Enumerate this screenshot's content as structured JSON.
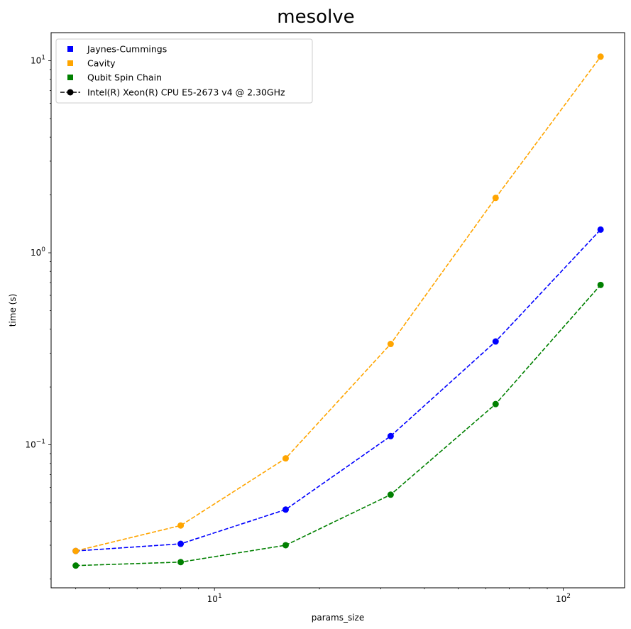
{
  "chart_data": {
    "type": "line",
    "title": "mesolve",
    "xlabel": "params_size",
    "ylabel": "time (s)",
    "xscale": "log",
    "yscale": "log",
    "xlim": [
      3.4,
      150
    ],
    "ylim": [
      0.018,
      14
    ],
    "grid": false,
    "legend_position": "top-left",
    "x": [
      4,
      8,
      16,
      32,
      64,
      128
    ],
    "series": [
      {
        "name": "Jaynes-Cummings",
        "color": "#0000ff",
        "values": [
          0.028,
          0.0305,
          0.046,
          0.111,
          0.345,
          1.32
        ]
      },
      {
        "name": "Cavity",
        "color": "#ffa500",
        "values": [
          0.028,
          0.038,
          0.085,
          0.335,
          1.93,
          10.5
        ]
      },
      {
        "name": "Qubit Spin Chain",
        "color": "#008000",
        "values": [
          0.0235,
          0.0245,
          0.03,
          0.055,
          0.163,
          0.68
        ]
      }
    ],
    "style_legend": {
      "label": "Intel(R) Xeon(R) CPU E5-2673 v4 @ 2.30GHz",
      "color": "#000000"
    },
    "x_ticks": [
      {
        "value": 10,
        "base": "10",
        "exp": "1"
      },
      {
        "value": 100,
        "base": "10",
        "exp": "2"
      }
    ],
    "y_ticks": [
      {
        "value": 0.1,
        "base": "10",
        "exp": "−1"
      },
      {
        "value": 1,
        "base": "10",
        "exp": "0"
      },
      {
        "value": 10,
        "base": "10",
        "exp": "1"
      }
    ]
  }
}
